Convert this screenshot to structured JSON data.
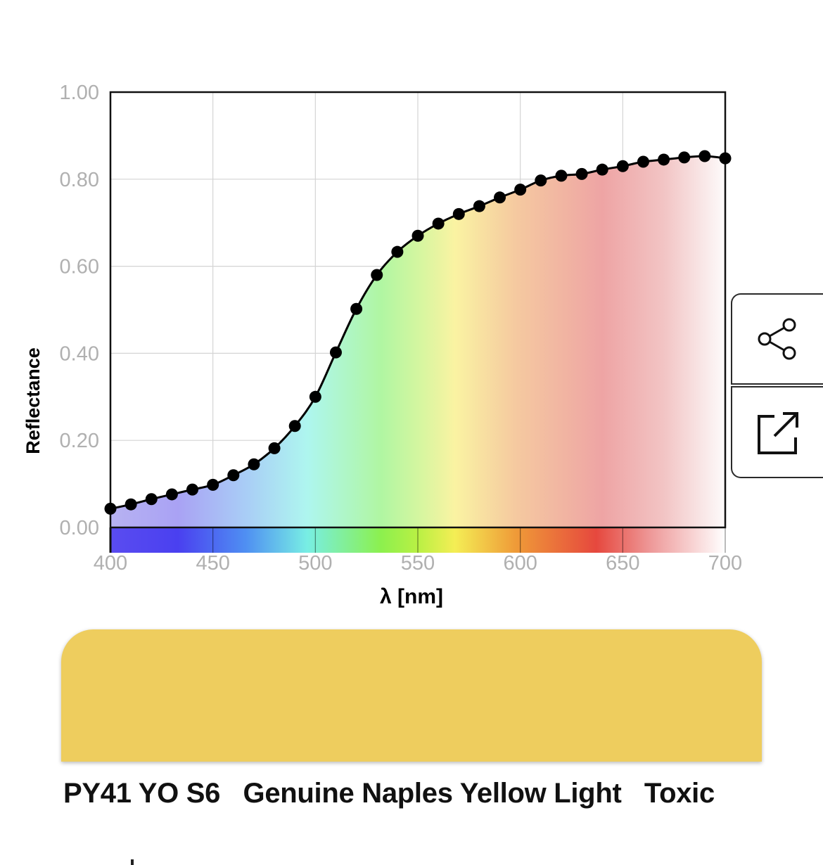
{
  "chart_data": {
    "type": "line",
    "xlabel": "λ [nm]",
    "ylabel": "Reflectance",
    "xlim": [
      400,
      700
    ],
    "ylim": [
      0,
      1
    ],
    "x_ticks": [
      "400",
      "450",
      "500",
      "550",
      "600",
      "650",
      "700"
    ],
    "y_ticks": [
      "0.00",
      "0.20",
      "0.40",
      "0.60",
      "0.80",
      "1.00"
    ],
    "grid": true,
    "x": [
      400,
      410,
      420,
      430,
      440,
      450,
      460,
      470,
      480,
      490,
      500,
      510,
      520,
      530,
      540,
      550,
      560,
      570,
      580,
      590,
      600,
      610,
      620,
      630,
      640,
      650,
      660,
      670,
      680,
      690,
      700
    ],
    "y": [
      0.043,
      0.053,
      0.065,
      0.076,
      0.087,
      0.098,
      0.12,
      0.145,
      0.182,
      0.233,
      0.3,
      0.402,
      0.502,
      0.58,
      0.633,
      0.67,
      0.698,
      0.72,
      0.738,
      0.758,
      0.776,
      0.797,
      0.808,
      0.812,
      0.822,
      0.83,
      0.84,
      0.845,
      0.85,
      0.853,
      0.848
    ],
    "marker_color": "#000000"
  },
  "swatch": {
    "color": "#eecd5e"
  },
  "paint": {
    "code": "PY41 YO S6",
    "name": "Genuine Naples Yellow Light",
    "toxicity": "Toxic"
  },
  "buttons": {
    "share_icon": "share-icon",
    "open_icon": "external-link-icon"
  }
}
